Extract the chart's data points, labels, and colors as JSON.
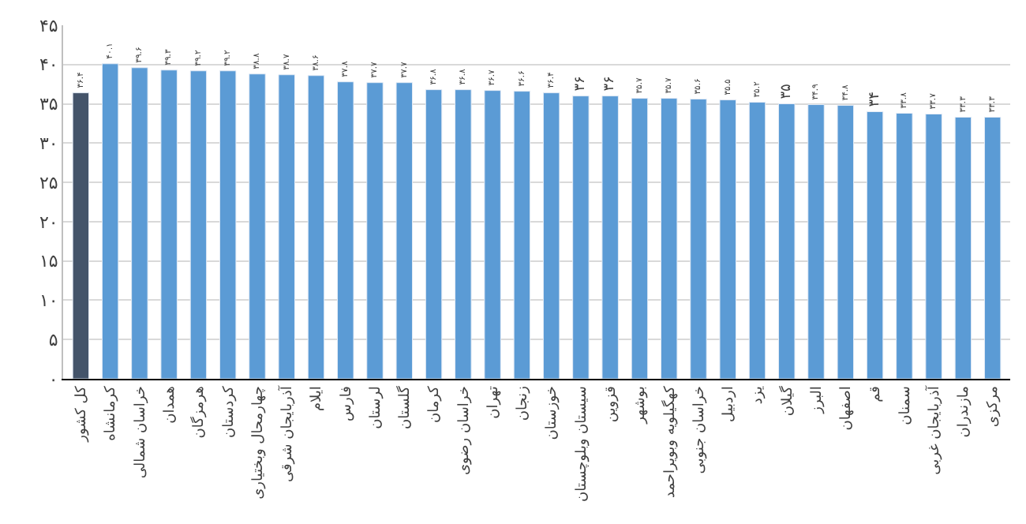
{
  "chart_data": {
    "type": "bar",
    "categories": [
      "کل کشور",
      "کرمانشاه",
      "خراسان شمالی",
      "همدان",
      "هرمزگان",
      "کردستان",
      "چهارمحال وبختیاری",
      "آذربایجان شرقی",
      "ایلام",
      "فارس",
      "لرستان",
      "گلستان",
      "کرمان",
      "خراسان رضوی",
      "تهران",
      "زنجان",
      "خوزستان",
      "سیستان وبلوچستان",
      "قزوین",
      "بوشهر",
      "کهگیلویه وبویراحمد",
      "خراسان جنوبی",
      "اردبیل",
      "یزد",
      "گیلان",
      "البرز",
      "اصفهان",
      "قم",
      "سمنان",
      "آذربایجان غربی",
      "مازندران",
      "مرکزی"
    ],
    "values": [
      36.4,
      40.1,
      39.6,
      39.3,
      39.2,
      39.2,
      38.8,
      38.7,
      38.6,
      37.8,
      37.7,
      37.7,
      36.8,
      36.8,
      36.7,
      36.6,
      36.4,
      36,
      36,
      35.7,
      35.7,
      35.6,
      35.5,
      35.2,
      35,
      34.9,
      34.8,
      34,
      33.8,
      33.7,
      33.3,
      33.3
    ],
    "value_labels": [
      "۳۶.۴",
      "۴۰.۱",
      "۳۹.۶",
      "۳۹.۳",
      "۳۹.۲",
      "۳۹.۲",
      "۳۸.۸",
      "۳۸.۷",
      "۳۸.۶",
      "۳۷.۸",
      "۳۷.۷",
      "۳۷.۷",
      "۳۶.۸",
      "۳۶.۸",
      "۳۶.۷",
      "۳۶.۶",
      "۳۶.۴",
      "۳۶",
      "۳۶",
      "۳۵.۷",
      "۳۵.۷",
      "۳۵.۶",
      "۳۵.۵",
      "۳۵.۲",
      "۳۵",
      "۳۴.۹",
      "۳۴.۸",
      "۳۴",
      "۳۳.۸",
      "۳۳.۷",
      "۳۳.۳",
      "۳۳.۳"
    ],
    "colors": [
      "#44546a",
      "#5b9bd5",
      "#5b9bd5",
      "#5b9bd5",
      "#5b9bd5",
      "#5b9bd5",
      "#5b9bd5",
      "#5b9bd5",
      "#5b9bd5",
      "#5b9bd5",
      "#5b9bd5",
      "#5b9bd5",
      "#5b9bd5",
      "#5b9bd5",
      "#5b9bd5",
      "#5b9bd5",
      "#5b9bd5",
      "#5b9bd5",
      "#5b9bd5",
      "#5b9bd5",
      "#5b9bd5",
      "#5b9bd5",
      "#5b9bd5",
      "#5b9bd5",
      "#5b9bd5",
      "#5b9bd5",
      "#5b9bd5",
      "#5b9bd5",
      "#5b9bd5",
      "#5b9bd5",
      "#5b9bd5",
      "#5b9bd5"
    ],
    "ylim": [
      0,
      45
    ],
    "yticks": [
      {
        "value": 0,
        "label": "۰"
      },
      {
        "value": 5,
        "label": "۵"
      },
      {
        "value": 10,
        "label": "۱۰"
      },
      {
        "value": 15,
        "label": "۱۵"
      },
      {
        "value": 20,
        "label": "۲۰"
      },
      {
        "value": 25,
        "label": "۲۵"
      },
      {
        "value": 30,
        "label": "۳۰"
      },
      {
        "value": 35,
        "label": "۳۵"
      },
      {
        "value": 40,
        "label": "۴۰"
      },
      {
        "value": 45,
        "label": "۴۵"
      }
    ],
    "grid": "y",
    "legend": false
  }
}
